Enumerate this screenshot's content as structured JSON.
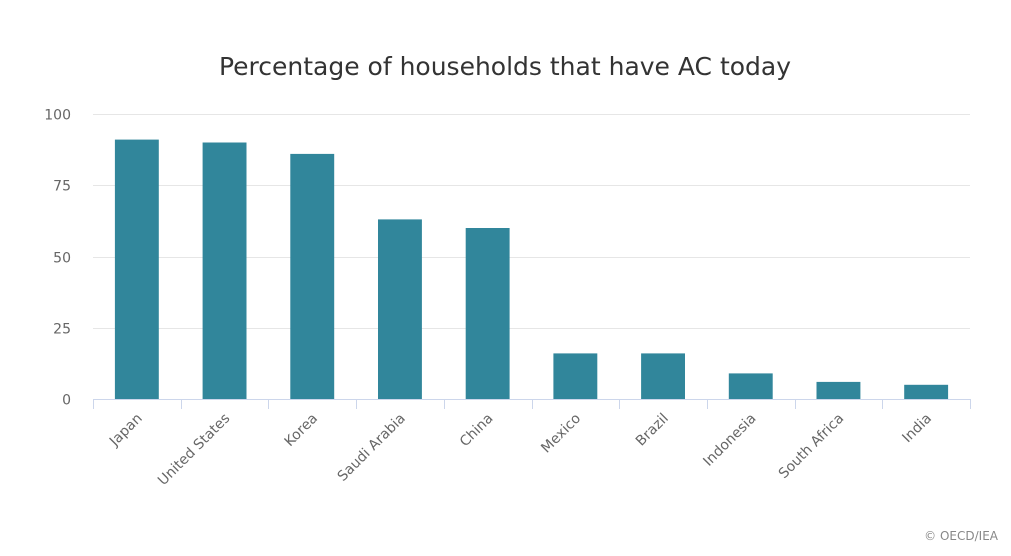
{
  "chart_data": {
    "type": "bar",
    "title": "Percentage of households that have AC today",
    "xlabel": "",
    "ylabel": "",
    "categories": [
      "Japan",
      "United States",
      "Korea",
      "Saudi Arabia",
      "China",
      "Mexico",
      "Brazil",
      "Indonesia",
      "South Africa",
      "India"
    ],
    "values": [
      91,
      90,
      86,
      63,
      60,
      16,
      16,
      9,
      6,
      5
    ],
    "ylim": [
      0,
      100
    ],
    "yticks": [
      "0",
      "25",
      "50",
      "75",
      "100"
    ],
    "grid": true,
    "legend": "none",
    "bar_color": "#31869b",
    "grid_color": "#e6e6e6",
    "axis_color": "#ccd6eb"
  },
  "credit": "© OECD/IEA"
}
